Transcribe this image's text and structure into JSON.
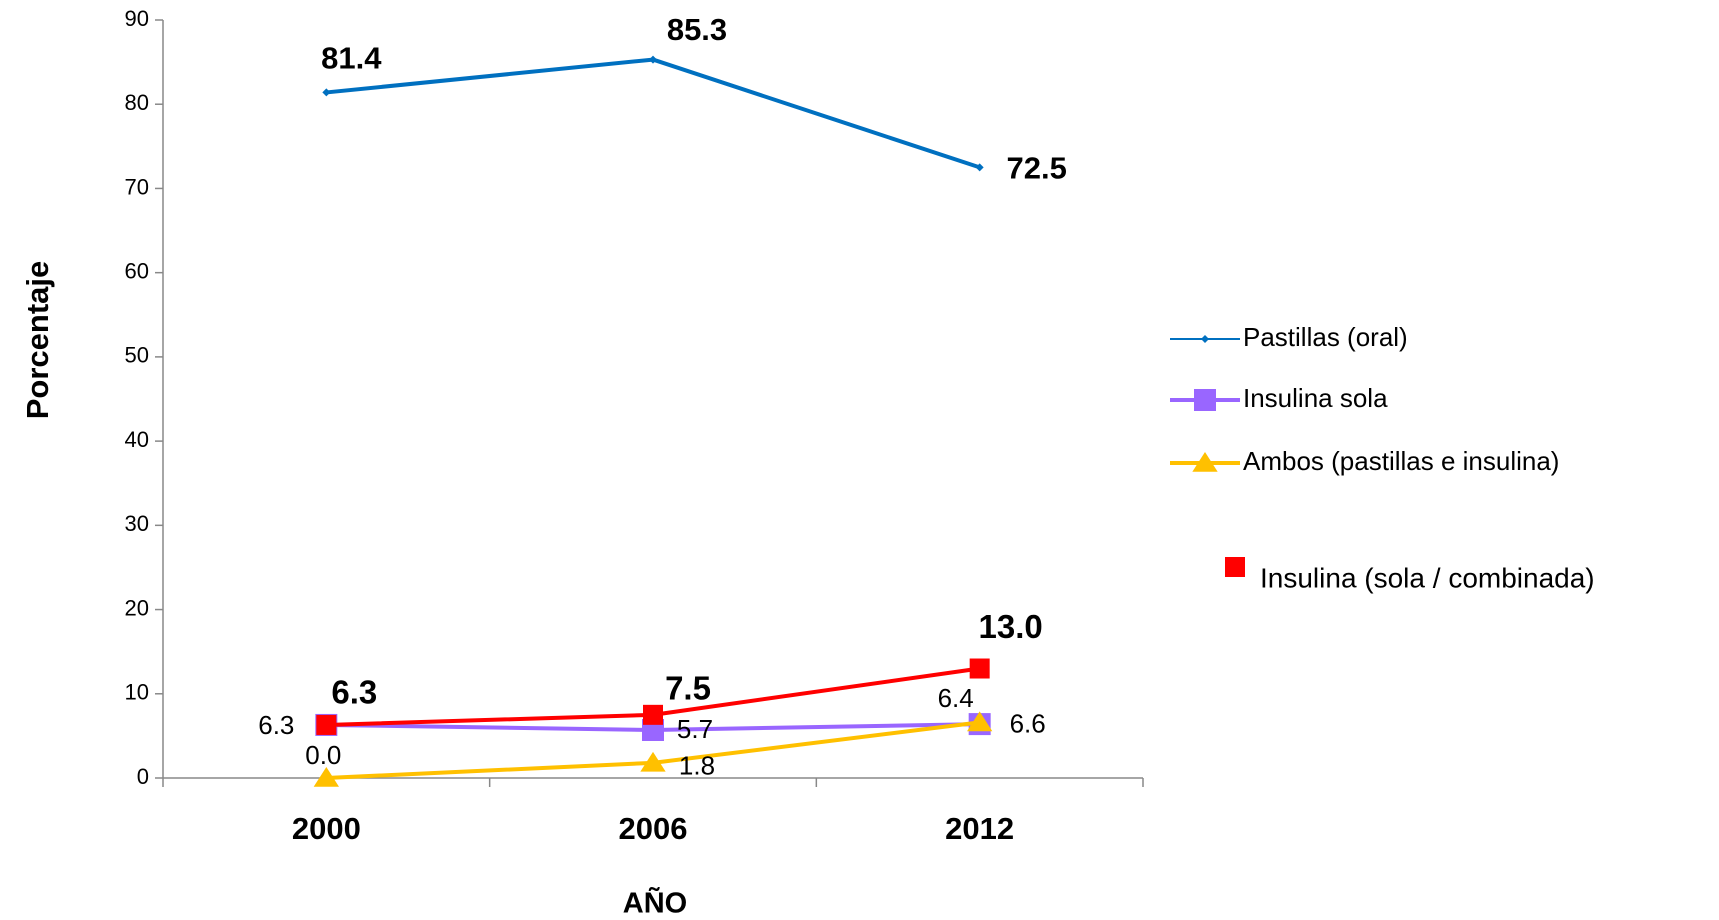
{
  "chart_data": {
    "type": "line",
    "categories": [
      "2000",
      "2006",
      "2012"
    ],
    "x_label": "AÑO",
    "y_label": "Porcentaje",
    "ylim": [
      0,
      90
    ],
    "yticks": [
      0,
      10,
      20,
      30,
      40,
      50,
      60,
      70,
      80,
      90
    ],
    "series": [
      {
        "name": "Pastillas (oral)",
        "color": "#0070c0",
        "marker": "diamond",
        "values": [
          81.4,
          85.3,
          72.5
        ],
        "value_labels": [
          "81.4",
          "85.3",
          "72.5"
        ]
      },
      {
        "name": "Insulina sola",
        "color": "#9966ff",
        "marker": "square",
        "values": [
          6.3,
          5.7,
          6.4
        ],
        "value_labels": [
          "6.3",
          "5.7",
          "6.4"
        ]
      },
      {
        "name": "Ambos (pastillas e insulina)",
        "color": "#ffc000",
        "marker": "triangle",
        "values": [
          0.0,
          1.8,
          6.6
        ],
        "value_labels": [
          "0.0",
          "1.8",
          "6.6"
        ]
      },
      {
        "name": "Insulina (sola / combinada)",
        "color": "#ff0000",
        "marker": "square",
        "values": [
          6.3,
          7.5,
          13.0
        ],
        "value_labels": [
          "6.3",
          "7.5",
          "13.0"
        ]
      }
    ]
  }
}
